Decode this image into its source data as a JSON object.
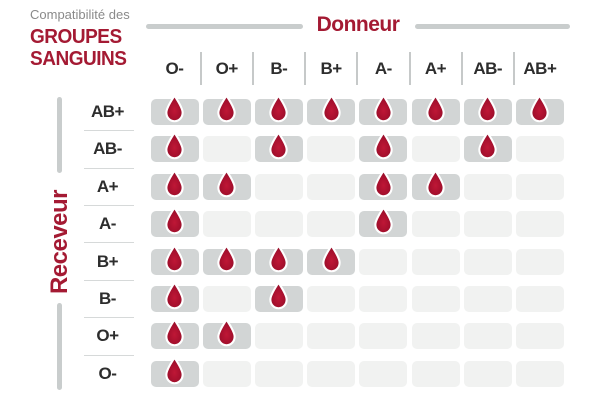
{
  "page": {
    "subtitle": "Compatibilité des",
    "title_line1": "GROUPES",
    "title_line2": "SANGUINS"
  },
  "axes": {
    "donor": "Donneur",
    "receiver": "Receveur"
  },
  "chart_data": {
    "type": "heatmap",
    "title": "Compatibilité des GROUPES SANGUINS",
    "x_axis_label": "Donneur",
    "y_axis_label": "Receveur",
    "columns": [
      "O-",
      "O+",
      "B-",
      "B+",
      "A-",
      "A+",
      "AB-",
      "AB+"
    ],
    "rows": [
      "AB+",
      "AB-",
      "A+",
      "A-",
      "B+",
      "B-",
      "O+",
      "O-"
    ],
    "values": [
      [
        1,
        1,
        1,
        1,
        1,
        1,
        1,
        1
      ],
      [
        1,
        0,
        1,
        0,
        1,
        0,
        1,
        0
      ],
      [
        1,
        1,
        0,
        0,
        1,
        1,
        0,
        0
      ],
      [
        1,
        0,
        0,
        0,
        1,
        0,
        0,
        0
      ],
      [
        1,
        1,
        1,
        1,
        0,
        0,
        0,
        0
      ],
      [
        1,
        0,
        1,
        0,
        0,
        0,
        0,
        0
      ],
      [
        1,
        1,
        0,
        0,
        0,
        0,
        0,
        0
      ],
      [
        1,
        0,
        0,
        0,
        0,
        0,
        0,
        0
      ]
    ],
    "cell_marker": "blood-drop-icon"
  },
  "colors": {
    "accent_red": "#a41a33",
    "drop_red_center": "#b51533",
    "drop_red_edge": "#8a0f27",
    "cell_filled": "#d2d5d5",
    "cell_empty": "#f1f2f1",
    "divider_gray": "#c9cdcd",
    "header_text": "#2d2d2d",
    "subtitle_gray": "#8a8a8a"
  }
}
